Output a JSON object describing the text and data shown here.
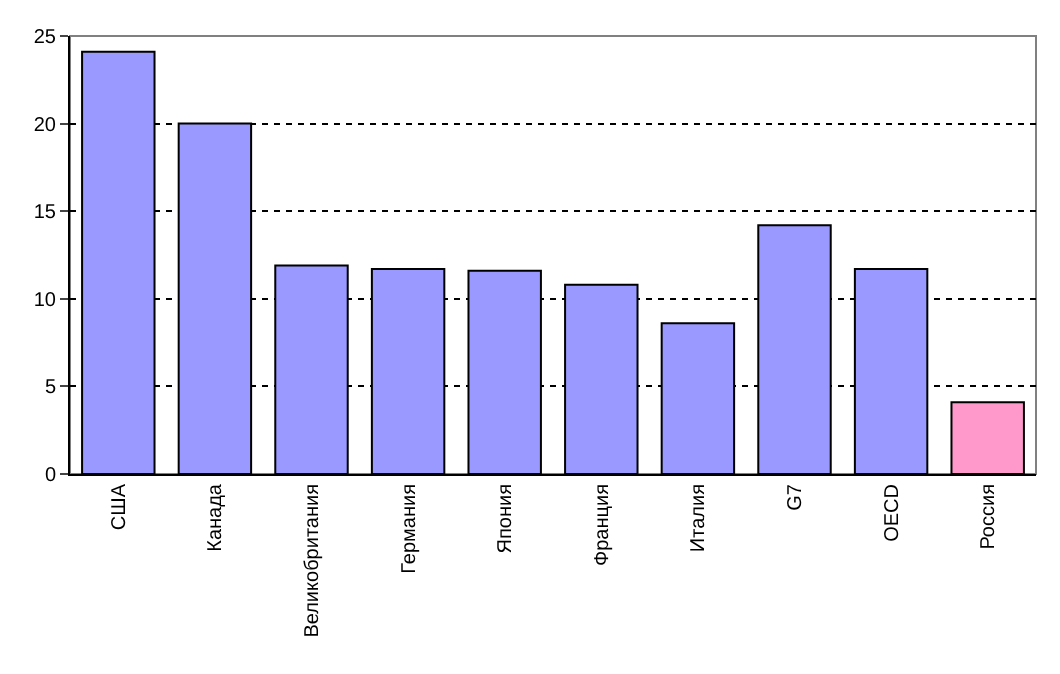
{
  "chart_data": {
    "type": "bar",
    "categories": [
      "США",
      "Канада",
      "Великобритания",
      "Германия",
      "Япония",
      "Франция",
      "Италия",
      "G7",
      "OECD",
      "Россия"
    ],
    "values": [
      24.1,
      20.0,
      11.9,
      11.7,
      11.6,
      10.8,
      8.6,
      14.2,
      11.7,
      4.1
    ],
    "colors": [
      "#9999ff",
      "#9999ff",
      "#9999ff",
      "#9999ff",
      "#9999ff",
      "#9999ff",
      "#9999ff",
      "#9999ff",
      "#9999ff",
      "#ff99cc"
    ],
    "ylim": [
      0,
      25
    ],
    "yticks": [
      0,
      5,
      10,
      15,
      20,
      25
    ],
    "grid": "y",
    "line_style": "dashed"
  }
}
